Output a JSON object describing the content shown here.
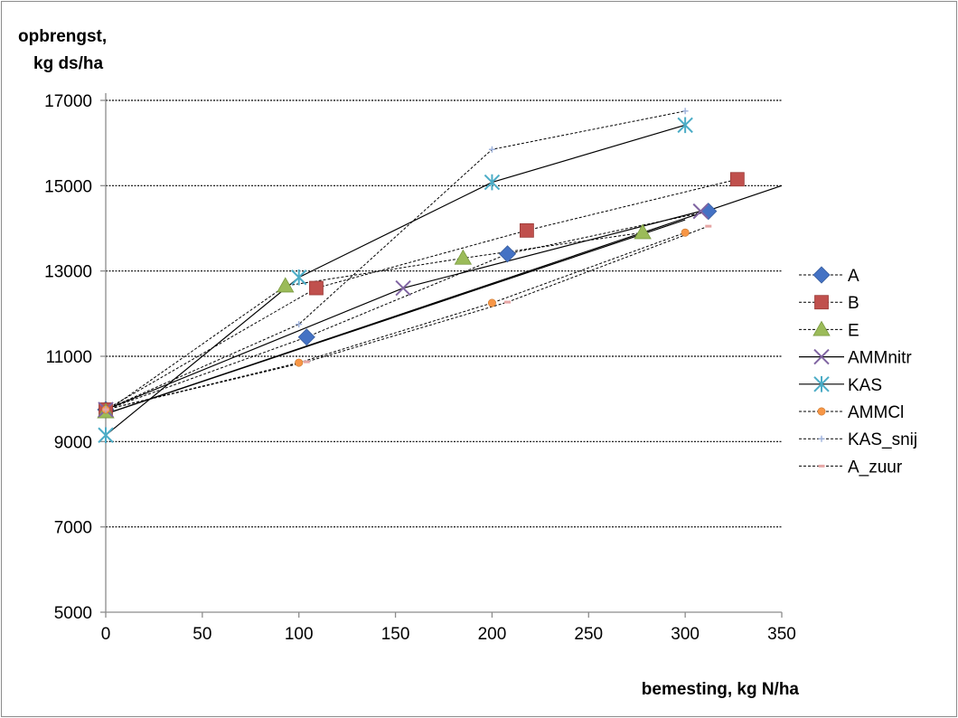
{
  "chart_data": {
    "type": "line",
    "title": "",
    "ylabel_lines": [
      "opbrengst,",
      "kg ds/ha"
    ],
    "xlabel": "bemesting, kg N/ha",
    "xlim": [
      0,
      350
    ],
    "ylim": [
      5000,
      17000
    ],
    "x_ticks": [
      0,
      50,
      100,
      150,
      200,
      250,
      300,
      350
    ],
    "y_ticks": [
      5000,
      7000,
      9000,
      11000,
      13000,
      15000,
      17000
    ],
    "y_gridlines": [
      7000,
      9000,
      11000,
      13000,
      15000,
      17000
    ],
    "grid": true,
    "legend_position": "right",
    "series": [
      {
        "name": "A",
        "marker": "diamond",
        "color": "#4472C4",
        "line": "dashed",
        "x": [
          0,
          104,
          208,
          312
        ],
        "y": [
          9750,
          11450,
          13400,
          14400
        ]
      },
      {
        "name": "B",
        "marker": "square",
        "color": "#C0504D",
        "line": "dashed",
        "x": [
          0,
          109,
          218,
          327
        ],
        "y": [
          9750,
          12600,
          13950,
          15150
        ]
      },
      {
        "name": "E",
        "marker": "triangle",
        "color": "#9BBB59",
        "line": "dashed",
        "x": [
          0,
          93,
          185,
          278
        ],
        "y": [
          9700,
          12650,
          13300,
          13900
        ]
      },
      {
        "name": "AMMnitr",
        "marker": "x",
        "color": "#8064A2",
        "line": "solid",
        "x": [
          0,
          154,
          308
        ],
        "y": [
          9750,
          12600,
          14400
        ]
      },
      {
        "name": "KAS",
        "marker": "star",
        "color": "#4BACC6",
        "line": "solid",
        "x": [
          0,
          100,
          200,
          300
        ],
        "y": [
          9150,
          12850,
          15080,
          16420
        ]
      },
      {
        "name": "AMMCl",
        "marker": "circle",
        "color": "#F79646",
        "line": "dashed",
        "x": [
          0,
          100,
          200,
          300
        ],
        "y": [
          9750,
          10850,
          12250,
          13900
        ]
      },
      {
        "name": "KAS_snij",
        "marker": "plus",
        "color": "#9DB1DB",
        "line": "dashed",
        "x": [
          0,
          100,
          200,
          300
        ],
        "y": [
          9750,
          11750,
          15850,
          16750
        ]
      },
      {
        "name": "A_zuur",
        "marker": "dash",
        "color": "#E6A6A5",
        "line": "dashed",
        "x": [
          0,
          104,
          208,
          312
        ],
        "y": [
          9750,
          10870,
          12270,
          14050
        ]
      }
    ],
    "trend_lines": [
      {
        "x": [
          0,
          350
        ],
        "y": [
          9650,
          15000
        ]
      },
      {
        "x": [
          0,
          300
        ],
        "y": [
          9650,
          14200
        ]
      }
    ]
  }
}
